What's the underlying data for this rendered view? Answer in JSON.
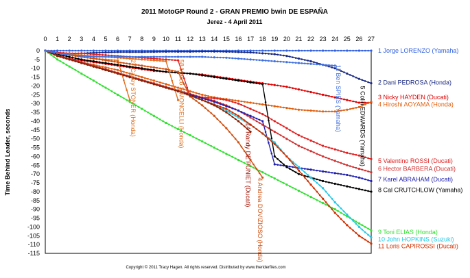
{
  "chart_data": {
    "type": "line",
    "title": "2011 MotoGP Round 2 - GRAN PREMIO bwin DE ESPAÑA",
    "subtitle": "Jerez - 4 April 2011",
    "ylabel": "Time Behind Leader, seconds",
    "xlabel": "",
    "xlim": [
      0,
      27
    ],
    "ylim": [
      -115,
      0
    ],
    "x_ticks": [
      "0",
      "1",
      "2",
      "3",
      "4",
      "5",
      "6",
      "7",
      "8",
      "9",
      "10",
      "11",
      "12",
      "13",
      "14",
      "15",
      "16",
      "17",
      "18",
      "19",
      "20",
      "21",
      "22",
      "23",
      "24",
      "25",
      "26",
      "27"
    ],
    "y_ticks": [
      "0",
      "-5",
      "-10",
      "-15",
      "-20",
      "-25",
      "-30",
      "-35",
      "-40",
      "-45",
      "-50",
      "-55",
      "-60",
      "-65",
      "-70",
      "-75",
      "-80",
      "-85",
      "-90",
      "-95",
      "-100",
      "-105",
      "-110",
      "-115"
    ],
    "grid": true,
    "legend_position": "right",
    "copyright": "Copyright © 2011 Tracy Hagen. All rights reserved. Distributed by www.theriderfiles.com",
    "series": [
      {
        "name": "1 Jorge LORENZO (Yamaha)",
        "color": "#3060e0",
        "x": [
          0,
          1,
          2,
          3,
          4,
          5,
          6,
          7,
          8,
          9,
          10,
          11,
          12,
          13,
          14,
          15,
          16,
          17,
          18,
          19,
          20,
          21,
          22,
          23,
          24,
          25,
          26,
          27
        ],
        "values": [
          0,
          0,
          0,
          0,
          0,
          0,
          0,
          0,
          0,
          0,
          0,
          0,
          0,
          0,
          0,
          0,
          0,
          0,
          0,
          0,
          0,
          0,
          0,
          0,
          0,
          0,
          0,
          0
        ]
      },
      {
        "name": "2 Dani PEDROSA (Honda)",
        "color": "#1a2a80",
        "x": [
          0,
          1,
          2,
          3,
          4,
          5,
          6,
          7,
          8,
          9,
          10,
          11,
          12,
          13,
          14,
          15,
          16,
          17,
          18,
          19,
          20,
          21,
          22,
          23,
          24,
          25,
          26,
          27
        ],
        "values": [
          0,
          -1.2,
          -1.8,
          -1.5,
          -1.2,
          -1,
          -0.8,
          -0.8,
          -0.8,
          -0.7,
          -0.6,
          -0.6,
          -0.6,
          -0.5,
          -0.5,
          -0.6,
          -0.8,
          -1,
          -1.5,
          -2,
          -3,
          -4.5,
          -6,
          -8,
          -10,
          -13,
          -16,
          -18.5
        ]
      },
      {
        "name": "3 Nicky HAYDEN (Ducati)",
        "color": "#e00000",
        "x": [
          0,
          1,
          2,
          3,
          4,
          5,
          6,
          7,
          8,
          9,
          10,
          11,
          12,
          13,
          14,
          15,
          16,
          17,
          18,
          19,
          20,
          21,
          22,
          23,
          24,
          25,
          26,
          27
        ],
        "values": [
          0,
          -3,
          -4.5,
          -5.5,
          -6.5,
          -7.5,
          -8.5,
          -9.5,
          -10.5,
          -11.5,
          -12,
          -12.5,
          -13,
          -13.5,
          -14.5,
          -15.5,
          -16.5,
          -17.5,
          -18.5,
          -19.5,
          -20.5,
          -22,
          -23.5,
          -25,
          -26.5,
          -28,
          -29.5,
          -29.5
        ]
      },
      {
        "name": "4 Hiroshi AOYAMA (Honda)",
        "color": "#e06010",
        "x": [
          0,
          1,
          2,
          3,
          4,
          5,
          6,
          7,
          8,
          9,
          10,
          11,
          12,
          13,
          14,
          15,
          16,
          17,
          18,
          19,
          20,
          21,
          22,
          23,
          24,
          25,
          26,
          27
        ],
        "values": [
          0,
          -3,
          -5,
          -6.5,
          -8,
          -9.5,
          -11,
          -13,
          -15,
          -17,
          -19,
          -21,
          -23,
          -25,
          -26.5,
          -27.5,
          -28.5,
          -29.5,
          -30.5,
          -31.5,
          -32.5,
          -33.5,
          -34,
          -34.5,
          -34.5,
          -33.5,
          -32,
          -29
        ]
      },
      {
        "name": "5 Valentino ROSSI (Ducati)",
        "color": "#e02020",
        "x": [
          0,
          1,
          2,
          3,
          4,
          5,
          6,
          7,
          8,
          9,
          10,
          11,
          12,
          13,
          14,
          15,
          16,
          17,
          18,
          19,
          20,
          21,
          22,
          23,
          24,
          25,
          26,
          27
        ],
        "values": [
          0,
          -1,
          -1.5,
          -1.5,
          -2,
          -2.5,
          -3,
          -3.5,
          -4,
          -4.5,
          -5,
          -5.5,
          -26,
          -26.5,
          -27,
          -28,
          -30,
          -33,
          -36,
          -40,
          -44,
          -48,
          -51,
          -54,
          -56,
          -58,
          -59.5,
          -61.5
        ]
      },
      {
        "name": "6 Hector BARBERA (Ducati)",
        "color": "#d03030",
        "x": [
          0,
          1,
          2,
          3,
          4,
          5,
          6,
          7,
          8,
          9,
          10,
          11,
          12,
          13,
          14,
          15,
          16,
          17,
          18,
          19,
          20,
          21,
          22,
          23,
          24,
          25,
          26,
          27
        ],
        "values": [
          0,
          -2.5,
          -4.5,
          -6.5,
          -8.5,
          -10.5,
          -12.5,
          -14.5,
          -16.5,
          -18.5,
          -20.5,
          -22.5,
          -24.5,
          -26.5,
          -28.5,
          -31,
          -34,
          -38,
          -42,
          -46,
          -50,
          -54,
          -57,
          -60,
          -62.5,
          -65,
          -67,
          -69
        ]
      },
      {
        "name": "7 Karel ABRAHAM (Ducati)",
        "color": "#2020b0",
        "x": [
          0,
          1,
          2,
          3,
          4,
          5,
          6,
          7,
          8,
          9,
          10,
          11,
          12,
          13,
          14,
          15,
          16,
          17,
          18,
          19,
          20,
          21,
          22,
          23,
          24,
          25,
          26,
          27
        ],
        "values": [
          0,
          -3,
          -5,
          -7,
          -9,
          -11,
          -13,
          -15,
          -17,
          -19,
          -21,
          -23,
          -25,
          -27,
          -29,
          -31.5,
          -34,
          -37,
          -40,
          -64.5,
          -65.5,
          -66.5,
          -67.5,
          -68.5,
          -69.5,
          -70.5,
          -72,
          -74
        ]
      },
      {
        "name": "8 Cal CRUTCHLOW (Yamaha)",
        "color": "#000000",
        "x": [
          0,
          1,
          2,
          3,
          4,
          5,
          6,
          7,
          8,
          9,
          10,
          11,
          12,
          13,
          14,
          15,
          16,
          17,
          18,
          19,
          20,
          21,
          22,
          23,
          24,
          25,
          26,
          27
        ],
        "values": [
          0,
          -2,
          -3.5,
          -5,
          -6,
          -7,
          -8,
          -9,
          -10,
          -11,
          -12,
          -12.5,
          -13,
          -14,
          -15,
          -16,
          -17,
          -18,
          -19,
          -60,
          -66,
          -70,
          -72,
          -74,
          -75.5,
          -77,
          -78.5,
          -80
        ]
      },
      {
        "name": "9 Toni ELIAS (Honda)",
        "color": "#30e030",
        "x": [
          0,
          1,
          2,
          3,
          4,
          5,
          6,
          7,
          8,
          9,
          10,
          11,
          12,
          13,
          14,
          15,
          16,
          17,
          18,
          19,
          20,
          21,
          22,
          23,
          24,
          25,
          26,
          27
        ],
        "values": [
          0,
          -5,
          -9,
          -13,
          -17,
          -21,
          -25,
          -29,
          -33,
          -37,
          -41,
          -44.5,
          -48,
          -51.5,
          -55,
          -58.5,
          -62,
          -65.5,
          -69,
          -72.5,
          -76,
          -79.5,
          -83,
          -86.5,
          -90,
          -94,
          -98,
          -102
        ]
      },
      {
        "name": "10 John HOPKINS (Suzuki)",
        "color": "#20c8e8",
        "x": [
          0,
          1,
          2,
          3,
          4,
          5,
          6,
          7,
          8,
          9,
          10,
          11,
          12,
          13,
          14,
          15,
          16,
          17,
          18,
          19,
          20,
          21,
          22,
          23,
          24,
          25,
          26,
          27
        ],
        "values": [
          0,
          -3,
          -5,
          -7,
          -9,
          -11,
          -13,
          -15,
          -17,
          -19,
          -21,
          -23,
          -25.5,
          -28,
          -31,
          -34,
          -38,
          -42,
          -47,
          -52,
          -60,
          -66,
          -72,
          -78,
          -86,
          -93,
          -100,
          -106
        ]
      },
      {
        "name": "11 Loris CAPIROSSI (Ducati)",
        "color": "#d03000",
        "x": [
          0,
          1,
          2,
          3,
          4,
          5,
          6,
          7,
          8,
          9,
          10,
          11,
          12,
          13,
          14,
          15,
          16,
          17,
          18,
          19,
          20,
          21,
          22,
          23,
          24,
          25,
          26,
          27
        ],
        "values": [
          0,
          -3,
          -5,
          -7,
          -9,
          -11,
          -13,
          -15,
          -17,
          -19,
          -21,
          -23,
          -25.5,
          -28,
          -30.5,
          -33,
          -37,
          -42,
          -47,
          -53,
          -60,
          -68,
          -76,
          -84,
          -92,
          -99,
          -105,
          -109.5
        ]
      },
      {
        "name": "Casey STONER (Honda)",
        "color": "#e07020",
        "x": [
          0,
          1,
          2,
          3,
          4,
          5,
          6,
          7
        ],
        "values": [
          0,
          -1.5,
          -2.5,
          -3.5,
          -4.5,
          -5,
          -5.5,
          -28
        ]
      },
      {
        "name": "Marco SIMONCELLI (Honda)",
        "color": "#e07020",
        "x": [
          0,
          1,
          2,
          3,
          4,
          5,
          6,
          7,
          8,
          9,
          10,
          11
        ],
        "values": [
          0,
          -1.5,
          -2,
          -2.5,
          -3,
          -3.5,
          -4,
          -4.5,
          -5,
          -5.5,
          -6,
          -28
        ]
      },
      {
        "name": "Andrea DOVIZIOSO (Honda)",
        "color": "#d05010",
        "x": [
          0,
          1,
          2,
          3,
          4,
          5,
          6,
          7,
          8,
          9,
          10,
          11,
          12,
          13,
          14,
          15,
          16,
          17,
          18
        ],
        "values": [
          0,
          -1.5,
          -2.5,
          -3.5,
          -4.5,
          -5.5,
          -6.5,
          -7.5,
          -8.5,
          -9.5,
          -10.5,
          -12,
          -26,
          -31,
          -37,
          -44,
          -52,
          -62,
          -72
        ]
      },
      {
        "name": "Randy DE PUNIET (Ducati)",
        "color": "#8a2000",
        "x": [
          0,
          1,
          2,
          3,
          4,
          5,
          6,
          7,
          8,
          9,
          10,
          11,
          12,
          13,
          14,
          15,
          16,
          17
        ],
        "values": [
          0,
          -3,
          -5,
          -7,
          -9,
          -11,
          -13,
          -15,
          -17,
          -19,
          -21,
          -23,
          -25.5,
          -28,
          -31,
          -35,
          -40,
          -46
        ]
      },
      {
        "name": "Ben SPIES (Yamaha)",
        "color": "#4070e0",
        "x": [
          0,
          1,
          2,
          3,
          4,
          5,
          6,
          7,
          8,
          9,
          10,
          11,
          12,
          13,
          14,
          15,
          16,
          17,
          18,
          19,
          20,
          21,
          22,
          23,
          24
        ],
        "values": [
          0,
          -1.5,
          -2.5,
          -3,
          -3.5,
          -3.5,
          -3.5,
          -3.5,
          -3.5,
          -3.5,
          -3.5,
          -3.5,
          -3.5,
          -3.5,
          -3.8,
          -4,
          -4.5,
          -5,
          -5.5,
          -6,
          -6.5,
          -7,
          -7.5,
          -8,
          -8.5
        ]
      }
    ],
    "legend": [
      {
        "label": "1 Jorge LORENZO (Yamaha)",
        "color": "#3060e0",
        "y": 0
      },
      {
        "label": "2 Dani PEDROSA (Honda)",
        "color": "#1a2a80",
        "y": -18
      },
      {
        "label": "3 Nicky HAYDEN (Ducati)",
        "color": "#e00000",
        "y": -26.5
      },
      {
        "label": "4 Hiroshi AOYAMA (Honda)",
        "color": "#e06010",
        "y": -30.5
      },
      {
        "label": "5 Valentino ROSSI (Ducati)",
        "color": "#e02020",
        "y": -62.5
      },
      {
        "label": "6 Hector BARBERA (Ducati)",
        "color": "#d03030",
        "y": -67
      },
      {
        "label": "7 Karel ABRAHAM (Ducati)",
        "color": "#2020b0",
        "y": -73
      },
      {
        "label": "8 Cal CRUTCHLOW (Yamaha)",
        "color": "#000000",
        "y": -79
      }
    ],
    "legend_lower": [
      {
        "label": "9 Toni ELIAS (Honda)",
        "color": "#30e030",
        "y": -103
      },
      {
        "label": "10 John HOPKINS (Suzuki)",
        "color": "#20c8e8",
        "y": -107
      },
      {
        "label": "11 Loris CAPIROSSI (Ducati)",
        "color": "#d03000",
        "y": -111
      }
    ],
    "annotations": [
      {
        "label": "27 Casey STONER (Honda)",
        "color": "#e07020",
        "x": 7,
        "y": -5
      },
      {
        "label": "58 Marco SIMONCELLI (Honda)",
        "color": "#e07020",
        "x": 11,
        "y": -5
      },
      {
        "label": "14 Randy DE PUNIET (Ducati)",
        "color": "#a01000",
        "x": 16.5,
        "y": -41
      },
      {
        "label": "4 Andrea DOVIZIOSO (Honda)",
        "color": "#d05010",
        "x": 17.5,
        "y": -72
      },
      {
        "label": "11 Ben SPIES (Yamaha)",
        "color": "#4070e0",
        "x": 24,
        "y": -8
      },
      {
        "label": "5 Colin EDWARDS (Yamaha)",
        "color": "#000000",
        "x": 26,
        "y": -20
      }
    ]
  }
}
